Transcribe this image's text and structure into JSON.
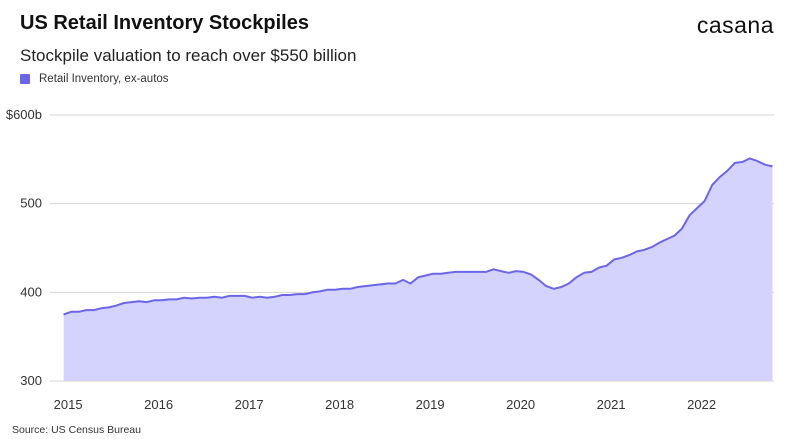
{
  "header": {
    "title": "US Retail Inventory Stockpiles",
    "brand": "casana",
    "subtitle": "Stockpile valuation to reach over $550 billion"
  },
  "footer": {
    "source": "Source: US Census Bureau"
  },
  "colors": {
    "line": "#6b66e8",
    "fill": "#d4d3fd",
    "legend": "#6b66e8",
    "grid": "#d4d4d4"
  },
  "chart_data": {
    "type": "area",
    "title": "US Retail Inventory Stockpiles",
    "subtitle": "Stockpile valuation to reach over $550 billion",
    "xlabel": "",
    "ylabel": "",
    "ylim": [
      300,
      600
    ],
    "xlim": [
      2015.0,
      2022.75
    ],
    "grid": true,
    "legend_position": "top-left",
    "y_ticks": [
      {
        "value": 300,
        "label": "300"
      },
      {
        "value": 400,
        "label": "400"
      },
      {
        "value": 500,
        "label": "500"
      },
      {
        "value": 600,
        "label": "$600b"
      }
    ],
    "x_ticks": [
      {
        "value": 2015,
        "label": "2015"
      },
      {
        "value": 2016,
        "label": "2016"
      },
      {
        "value": 2017,
        "label": "2017"
      },
      {
        "value": 2018,
        "label": "2018"
      },
      {
        "value": 2019,
        "label": "2019"
      },
      {
        "value": 2020,
        "label": "2020"
      },
      {
        "value": 2021,
        "label": "2021"
      },
      {
        "value": 2022,
        "label": "2022"
      }
    ],
    "series": [
      {
        "name": "Retail Inventory, ex-autos",
        "color": "#6b66e8",
        "points": [
          [
            2015.0,
            375
          ],
          [
            2015.083,
            378
          ],
          [
            2015.167,
            378
          ],
          [
            2015.25,
            380
          ],
          [
            2015.333,
            380
          ],
          [
            2015.417,
            382
          ],
          [
            2015.5,
            383
          ],
          [
            2015.583,
            385
          ],
          [
            2015.667,
            388
          ],
          [
            2015.75,
            389
          ],
          [
            2015.833,
            390
          ],
          [
            2015.917,
            389
          ],
          [
            2016.0,
            391
          ],
          [
            2016.083,
            391
          ],
          [
            2016.167,
            392
          ],
          [
            2016.25,
            392
          ],
          [
            2016.333,
            394
          ],
          [
            2016.417,
            393
          ],
          [
            2016.5,
            394
          ],
          [
            2016.583,
            394
          ],
          [
            2016.667,
            395
          ],
          [
            2016.75,
            394
          ],
          [
            2016.833,
            396
          ],
          [
            2016.917,
            396
          ],
          [
            2017.0,
            396
          ],
          [
            2017.083,
            394
          ],
          [
            2017.167,
            395
          ],
          [
            2017.25,
            394
          ],
          [
            2017.333,
            395
          ],
          [
            2017.417,
            397
          ],
          [
            2017.5,
            397
          ],
          [
            2017.583,
            398
          ],
          [
            2017.667,
            398
          ],
          [
            2017.75,
            400
          ],
          [
            2017.833,
            401
          ],
          [
            2017.917,
            403
          ],
          [
            2018.0,
            403
          ],
          [
            2018.083,
            404
          ],
          [
            2018.167,
            404
          ],
          [
            2018.25,
            406
          ],
          [
            2018.333,
            407
          ],
          [
            2018.417,
            408
          ],
          [
            2018.5,
            409
          ],
          [
            2018.583,
            410
          ],
          [
            2018.667,
            410
          ],
          [
            2018.75,
            414
          ],
          [
            2018.833,
            410
          ],
          [
            2018.917,
            417
          ],
          [
            2019.0,
            419
          ],
          [
            2019.083,
            421
          ],
          [
            2019.167,
            421
          ],
          [
            2019.25,
            422
          ],
          [
            2019.333,
            423
          ],
          [
            2019.417,
            423
          ],
          [
            2019.5,
            423
          ],
          [
            2019.583,
            423
          ],
          [
            2019.667,
            423
          ],
          [
            2019.75,
            426
          ],
          [
            2019.833,
            424
          ],
          [
            2019.917,
            422
          ],
          [
            2020.0,
            424
          ],
          [
            2020.083,
            423
          ],
          [
            2020.167,
            420
          ],
          [
            2020.25,
            414
          ],
          [
            2020.333,
            407
          ],
          [
            2020.417,
            404
          ],
          [
            2020.5,
            406
          ],
          [
            2020.583,
            410
          ],
          [
            2020.667,
            417
          ],
          [
            2020.75,
            422
          ],
          [
            2020.833,
            423
          ],
          [
            2020.917,
            428
          ],
          [
            2021.0,
            430
          ],
          [
            2021.083,
            437
          ],
          [
            2021.167,
            439
          ],
          [
            2021.25,
            442
          ],
          [
            2021.333,
            446
          ],
          [
            2021.417,
            448
          ],
          [
            2021.5,
            451
          ],
          [
            2021.583,
            456
          ],
          [
            2021.667,
            460
          ],
          [
            2021.75,
            464
          ],
          [
            2021.833,
            472
          ],
          [
            2021.917,
            487
          ],
          [
            2022.0,
            495
          ],
          [
            2022.083,
            503
          ],
          [
            2022.167,
            521
          ],
          [
            2022.25,
            530
          ],
          [
            2022.333,
            537
          ],
          [
            2022.417,
            546
          ],
          [
            2022.5,
            547
          ],
          [
            2022.583,
            551
          ],
          [
            2022.667,
            548
          ],
          [
            2022.75,
            544
          ],
          [
            2022.833,
            542
          ]
        ]
      }
    ]
  }
}
